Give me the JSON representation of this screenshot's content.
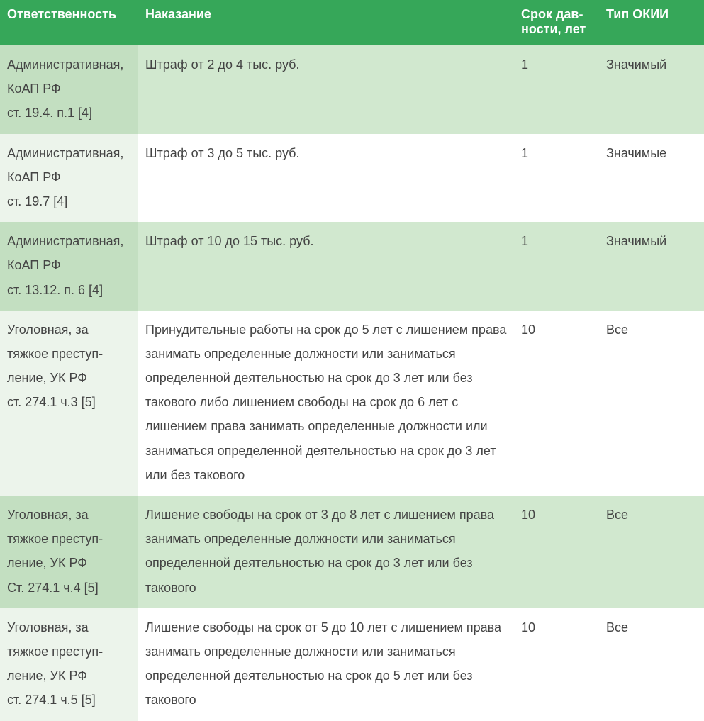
{
  "columns": [
    "Ответственность",
    "Наказание",
    "Срок дав-ности, лет",
    "Тип ОКИИ"
  ],
  "rows": [
    {
      "responsibility": "Административная, КоАП РФ\nст. 19.4. п.1 [4]",
      "punishment": "Штраф от 2 до 4 тыс. руб.",
      "term": "1",
      "type": "Значимый"
    },
    {
      "responsibility": "Административная, КоАП РФ\nст. 19.7 [4]",
      "punishment": "Штраф от 3 до 5 тыс. руб.",
      "term": "1",
      "type": "Значимые"
    },
    {
      "responsibility": "Административная, КоАП РФ\nст. 13.12. п. 6 [4]",
      "punishment": "Штраф от 10 до 15 тыс. руб.",
      "term": "1",
      "type": "Значимый"
    },
    {
      "responsibility": "Уголовная, за тяжкое преступ-ление, УК РФ\nст. 274.1 ч.3 [5]",
      "punishment": "Принудительные работы на срок до 5 лет с лишением права занимать определенные должности или заниматься определенной деятельностью на срок до 3 лет или без такового либо лишением свободы на срок до 6 лет с лишением права занимать определенные должности или заниматься определенной деятельностью на срок до 3 лет или без такового",
      "term": "10",
      "type": "Все"
    },
    {
      "responsibility": "Уголовная, за тяжкое преступ-ление, УК РФ\nСт. 274.1 ч.4 [5]",
      "punishment": "Лишение свободы на срок от 3 до 8 лет с лишением права занимать определенные должности или заниматься определенной деятельностью на срок до 3 лет или без такового",
      "term": "10",
      "type": "Все"
    },
    {
      "responsibility": "Уголовная, за тяжкое преступ-ление, УК РФ\nст. 274.1 ч.5 [5]",
      "punishment": "Лишение свободы на срок от 5 до 10 лет с лишением права занимать определенные должности или заниматься определенной деятельностью на срок до 5 лет или без такового",
      "term": "10",
      "type": "Все"
    }
  ],
  "styles": {
    "header_bg": "#36a759",
    "header_fg": "#ffffff",
    "row_alt_bg": "#d1e8cf",
    "row_alt_resp_bg": "#c3dfc1",
    "row_norm_bg": "#ffffff",
    "row_norm_resp_bg": "#ecf4eb",
    "font_size_pt": 14,
    "line_height": 1.9
  }
}
